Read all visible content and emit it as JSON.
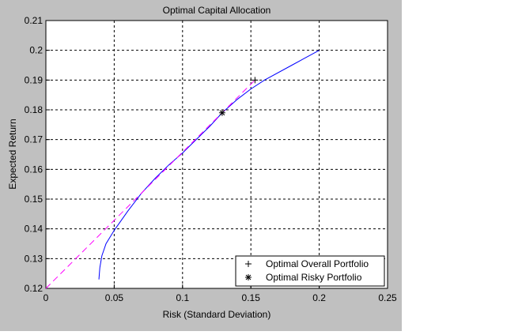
{
  "chart_data": {
    "type": "line",
    "title": "Optimal Capital Allocation",
    "x_label": "Risk (Standard Deviation)",
    "y_label": "Expected  Return",
    "xlim": [
      0,
      0.25
    ],
    "ylim": [
      0.12,
      0.21
    ],
    "xticks": [
      0,
      0.05,
      0.1,
      0.15,
      0.2,
      0.25
    ],
    "yticks": [
      0.12,
      0.13,
      0.14,
      0.15,
      0.16,
      0.17,
      0.18,
      0.19,
      0.2,
      0.21
    ],
    "grid": true,
    "legend": "lower right",
    "series": [
      {
        "color": "#0000ff",
        "x": [
          0.0388,
          0.0395,
          0.041,
          0.044,
          0.05,
          0.06,
          0.07,
          0.08,
          0.09,
          0.1,
          0.11,
          0.12,
          0.129,
          0.14,
          0.15,
          0.16,
          0.18,
          0.2
        ],
        "values": [
          0.123,
          0.127,
          0.131,
          0.135,
          0.1395,
          0.146,
          0.152,
          0.157,
          0.1615,
          0.1655,
          0.17,
          0.1745,
          0.179,
          0.1835,
          0.187,
          0.19,
          0.195,
          0.2
        ]
      },
      {
        "color": "#ff00ff",
        "dashed": true,
        "x": [
          0,
          0.153
        ],
        "values": [
          0.12,
          0.19
        ]
      },
      {
        "name": "Optimal Overall Portfolio",
        "color": "#000000",
        "marker": "+",
        "x": [
          0.153
        ],
        "values": [
          0.19
        ]
      },
      {
        "name": "Optimal Risky Portfolio",
        "color": "#000000",
        "marker": "*",
        "x": [
          0.129
        ],
        "values": [
          0.179
        ]
      }
    ]
  }
}
